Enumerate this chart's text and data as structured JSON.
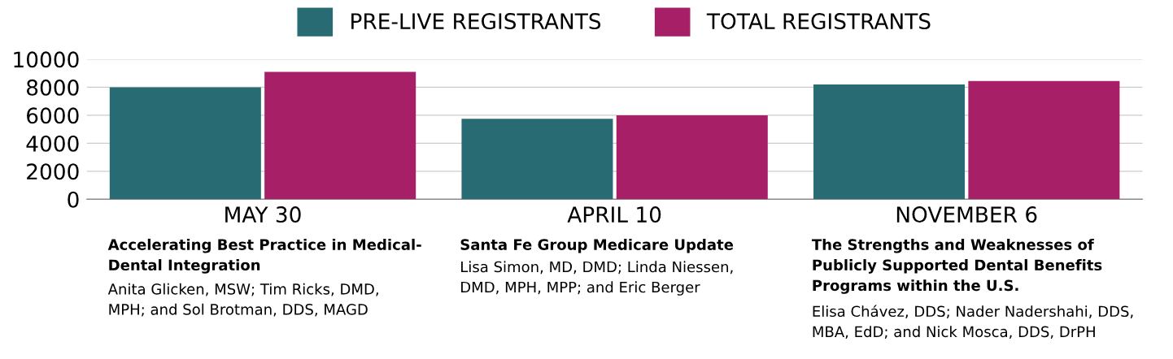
{
  "chart_data": {
    "type": "bar",
    "categories": [
      "MAY 30",
      "APRIL 10",
      "NOVEMBER 6"
    ],
    "series": [
      {
        "name": "PRE-LIVE REGISTRANTS",
        "color": "#286b73",
        "values": [
          8000,
          5750,
          8200
        ]
      },
      {
        "name": "TOTAL REGISTRANTS",
        "color": "#a61f67",
        "values": [
          9100,
          6000,
          8450
        ]
      }
    ],
    "ylim": [
      0,
      10000
    ],
    "yticks": [
      0,
      2000,
      4000,
      6000,
      8000,
      10000
    ],
    "grid": "y",
    "legend": "top",
    "annotations": [
      "Accelerating Best Practice in Medical-\nDental Integration",
      "Anita Glicken, MSW; Tim Ricks, DMD,\nMPH; and Sol Brotman, DDS, MAGD",
      "Santa Fe Group Medicare Update",
      "Lisa Simon, MD, DMD; Linda Niessen,\nDMD, MPH, MPP; and Eric Berger",
      "The Strengths and Weaknesses of\nPublicly Supported Dental Benefits\nPrograms within the U.S.",
      "Elisa Chávez, DDS; Nader Nadershahi, DDS,\nMBA, EdD; and Nick Mosca, DDS, DrPH"
    ]
  }
}
